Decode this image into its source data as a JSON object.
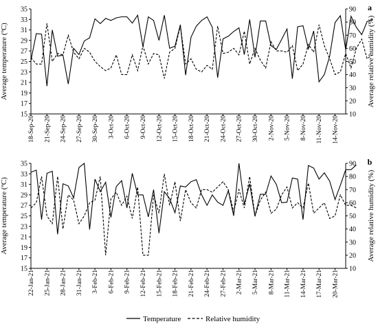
{
  "chart_data": [
    {
      "type": "line",
      "panel_label": "a",
      "ylabel_left": "Average temperature (ºC)",
      "ylabel_right": "Average relative humidity (%)",
      "ylim_left": [
        15,
        35
      ],
      "yticks_left": [
        15,
        17,
        19,
        21,
        23,
        25,
        27,
        29,
        31,
        33,
        35
      ],
      "ylim_right": [
        10,
        90
      ],
      "yticks_right": [
        10,
        20,
        30,
        40,
        50,
        60,
        70,
        80,
        90
      ],
      "x_start": "18-Sep-20",
      "x_end": "16-Nov-20",
      "x_tick_labels": [
        "18-Sep-20",
        "21-Sep-20",
        "24-Sep-20",
        "27-Sep-20",
        "30-Sep-20",
        "3-Oct-20",
        "6-Oct-20",
        "9-Oct-20",
        "12-Oct-20",
        "15-Oct-20",
        "18-Oct-20",
        "21-Oct-20",
        "24-Oct-20",
        "27-Oct-20",
        "30-Oct-20",
        "2-Nov-20",
        "5-Nov-20",
        "8-Nov-20",
        "11-Nov-20",
        "14-Nov-20"
      ],
      "series": [
        {
          "name": "Temperature",
          "axis": "left",
          "style": "solid",
          "values": [
            25.2,
            30.3,
            30.2,
            20.3,
            31.0,
            26.0,
            26.2,
            20.7,
            27.5,
            26.3,
            28.9,
            29.5,
            33.1,
            32.2,
            33.2,
            32.8,
            33.3,
            33.5,
            33.5,
            32.3,
            33.8,
            27.8,
            33.5,
            32.8,
            29.0,
            33.8,
            27.5,
            27.9,
            32.0,
            22.4,
            29.6,
            31.7,
            32.8,
            33.5,
            31.5,
            21.9,
            29.3,
            29.8,
            30.7,
            31.4,
            26.3,
            33.0,
            25.8,
            32.7,
            32.7,
            28.0,
            27.3,
            29.2,
            31.2,
            21.7,
            31.6,
            31.8,
            27.4,
            30.8,
            21.1,
            22.5,
            26.0,
            32.4,
            33.7,
            27.2,
            33.6,
            31.5,
            30.1,
            32.6,
            33.0
          ]
        },
        {
          "name": "Relative humidity",
          "axis": "right",
          "style": "dashed",
          "values": [
            53,
            48,
            48,
            79,
            50,
            56,
            55,
            70,
            57,
            52,
            60,
            57,
            50,
            46,
            43,
            45,
            55,
            40,
            40,
            55,
            43,
            62,
            48,
            56,
            55,
            37,
            57,
            60,
            77,
            48,
            52,
            44,
            42,
            47,
            44,
            77,
            56,
            57,
            60,
            55,
            73,
            48,
            60,
            51,
            45,
            65,
            58,
            58,
            57,
            62,
            43,
            48,
            63,
            57,
            78,
            62,
            52,
            40,
            42,
            56,
            45,
            60,
            67,
            52,
            55
          ]
        }
      ]
    },
    {
      "type": "line",
      "panel_label": "b",
      "ylabel_left": "Average temperature (ºC)",
      "ylabel_right": "Average relative humidity (%)",
      "ylim_left": [
        15,
        35
      ],
      "yticks_left": [
        15,
        17,
        19,
        21,
        23,
        25,
        27,
        29,
        31,
        33,
        35
      ],
      "ylim_right": [
        10,
        90
      ],
      "yticks_right": [
        10,
        20,
        30,
        40,
        50,
        60,
        70,
        80,
        90
      ],
      "x_start": "22-Jan-21",
      "x_end": "22-Mar-21",
      "x_tick_labels": [
        "22-Jan-21",
        "25-Jan-21",
        "28-Jan-21",
        "31-Jan-21",
        "3-Feb-21",
        "6-Feb-21",
        "9-Feb-21",
        "12-Feb-21",
        "15-Feb-21",
        "18-Feb-21",
        "21-Feb-21",
        "24-Feb-21",
        "27-Feb-21",
        "2-Mar-21",
        "5-Mar-21",
        "8-Mar-21",
        "11-Mar-21",
        "14-Mar-21",
        "17-Mar-21",
        "20-Mar-21"
      ],
      "series": [
        {
          "name": "Temperature",
          "axis": "left",
          "style": "solid",
          "values": [
            33.3,
            33.7,
            24.3,
            33.1,
            33.5,
            21.5,
            31.1,
            30.7,
            28.4,
            34.2,
            35.0,
            22.4,
            32.0,
            29.6,
            31.4,
            24.7,
            30.6,
            31.7,
            26.5,
            33.1,
            29.0,
            29.0,
            24.8,
            30.0,
            21.7,
            29.6,
            28.3,
            25.6,
            30.7,
            30.5,
            31.5,
            31.9,
            29.0,
            27.0,
            29.0,
            27.6,
            27.0,
            29.8,
            25.0,
            35.0,
            27.2,
            31.1,
            24.9,
            29.1,
            29.1,
            32.6,
            31.0,
            27.5,
            27.6,
            32.2,
            32.0,
            24.3,
            34.6,
            34.1,
            32.0,
            33.2,
            31.6,
            28.1,
            30.8,
            33.8,
            33.8,
            34.7
          ]
        },
        {
          "name": "Relative humidity",
          "axis": "right",
          "style": "dashed",
          "values": [
            56,
            60,
            80,
            50,
            44,
            80,
            40,
            66,
            62,
            44,
            50,
            60,
            62,
            80,
            20,
            63,
            68,
            58,
            65,
            48,
            72,
            20,
            20,
            66,
            52,
            82,
            58,
            76,
            46,
            70,
            60,
            56,
            70,
            70,
            68,
            72,
            76,
            70,
            53,
            70,
            56,
            80,
            50,
            62,
            68,
            52,
            55,
            66,
            72,
            56,
            60,
            56,
            75,
            52,
            56,
            60,
            48,
            50,
            66,
            58,
            58,
            56
          ]
        }
      ]
    }
  ],
  "legend": {
    "temperature_label": "Temperature",
    "humidity_label": "Relative humidity"
  }
}
